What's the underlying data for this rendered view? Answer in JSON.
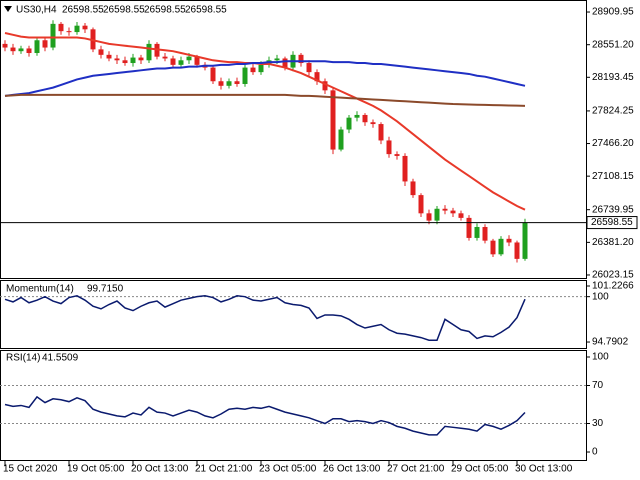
{
  "chart_data": [
    {
      "type": "candlestick",
      "title": "US30,H4",
      "header_values": [
        26598.55,
        26598.55,
        26598.55,
        26598.55
      ],
      "current_price": 26598.55,
      "categories": [
        "15 Oct 2020",
        null,
        null,
        null,
        null,
        null,
        null,
        null,
        "19 Oct 05:00",
        null,
        null,
        null,
        null,
        null,
        null,
        null,
        "20 Oct 13:00",
        null,
        null,
        null,
        null,
        null,
        null,
        null,
        "21 Oct 21:00",
        null,
        null,
        null,
        null,
        null,
        null,
        null,
        "23 Oct 05:00",
        null,
        null,
        null,
        null,
        null,
        null,
        null,
        "26 Oct 13:00",
        null,
        null,
        null,
        null,
        null,
        null,
        null,
        "27 Oct 21:00",
        null,
        null,
        null,
        null,
        null,
        null,
        null,
        "29 Oct 05:00",
        null,
        null,
        null,
        null,
        null,
        null,
        null,
        "30 Oct 13:00",
        null
      ],
      "open": [
        28560,
        28520,
        28480,
        28510,
        28460,
        28600,
        28520,
        28780,
        28700,
        28690,
        28760,
        28720,
        28500,
        28440,
        28400,
        28380,
        28350,
        28410,
        28380,
        28560,
        28420,
        28400,
        28330,
        28380,
        28420,
        28330,
        28300,
        28150,
        28100,
        28150,
        28120,
        28300,
        28250,
        28330,
        28380,
        28400,
        28300,
        28440,
        28350,
        28250,
        28150,
        28050,
        27400,
        27620,
        27750,
        27780,
        27700,
        27680,
        27500,
        27350,
        27330,
        27050,
        26900,
        26700,
        26620,
        26750,
        26730,
        26700,
        26650,
        26430,
        26550,
        26400,
        26250,
        26420,
        26380,
        26200
      ],
      "high": [
        28600,
        28560,
        28540,
        28540,
        28640,
        28640,
        28820,
        28800,
        28740,
        28800,
        28790,
        28740,
        28540,
        28480,
        28440,
        28420,
        28450,
        28440,
        28600,
        28580,
        28460,
        28430,
        28420,
        28460,
        28440,
        28360,
        28320,
        28190,
        28180,
        28190,
        28340,
        28340,
        28370,
        28420,
        28440,
        28420,
        28480,
        28460,
        28380,
        28280,
        28180,
        28080,
        27650,
        27780,
        27820,
        27800,
        27730,
        27700,
        27540,
        27380,
        27360,
        27080,
        26920,
        26740,
        26780,
        26790,
        26760,
        26730,
        26680,
        26590,
        26580,
        26420,
        26450,
        26460,
        26400,
        26640
      ],
      "low": [
        28480,
        28440,
        28450,
        28420,
        28430,
        28480,
        28490,
        28660,
        28650,
        28660,
        28680,
        28470,
        28400,
        28370,
        28340,
        28320,
        28310,
        28340,
        28350,
        28390,
        28370,
        28300,
        28300,
        28340,
        28300,
        28270,
        28120,
        28060,
        28070,
        28090,
        28090,
        28220,
        28220,
        28300,
        28340,
        28270,
        28260,
        28310,
        28210,
        28110,
        28010,
        27350,
        27380,
        27580,
        27710,
        27660,
        27640,
        27460,
        27310,
        27290,
        27000,
        26870,
        26660,
        26580,
        26580,
        26690,
        26660,
        26620,
        26400,
        26400,
        26370,
        26220,
        26230,
        26340,
        26160,
        26180
      ],
      "close": [
        28520,
        28480,
        28510,
        28460,
        28600,
        28520,
        28780,
        28700,
        28690,
        28760,
        28720,
        28500,
        28440,
        28400,
        28380,
        28350,
        28410,
        28380,
        28560,
        28420,
        28400,
        28330,
        28380,
        28420,
        28330,
        28300,
        28150,
        28100,
        28150,
        28120,
        28300,
        28250,
        28330,
        28380,
        28400,
        28300,
        28440,
        28350,
        28250,
        28150,
        28050,
        27400,
        27620,
        27750,
        27780,
        27700,
        27680,
        27500,
        27350,
        27330,
        27050,
        26900,
        26700,
        26620,
        26750,
        26730,
        26700,
        26650,
        26430,
        26550,
        26400,
        26250,
        26420,
        26380,
        26200,
        26598.55
      ],
      "up_color": "#1fa01f",
      "down_color": "#e02020",
      "series": [
        {
          "color": "#e8392a",
          "values": [
            28680,
            28660,
            28640,
            28630,
            28630,
            28630,
            28630,
            28630,
            28630,
            28630,
            28620,
            28600,
            28580,
            28560,
            28550,
            28540,
            28530,
            28520,
            28510,
            28500,
            28490,
            28480,
            28460,
            28440,
            28420,
            28400,
            28380,
            28370,
            28360,
            28360,
            28350,
            28350,
            28340,
            28340,
            28320,
            28300,
            28270,
            28240,
            28200,
            28160,
            28120,
            28080,
            28040,
            28000,
            27960,
            27920,
            27880,
            27830,
            27770,
            27710,
            27640,
            27570,
            27500,
            27430,
            27360,
            27290,
            27230,
            27170,
            27110,
            27050,
            26990,
            26930,
            26880,
            26830,
            26780,
            26740
          ]
        },
        {
          "color": "#1f2fc4",
          "values": [
            27990,
            28000,
            28010,
            28020,
            28040,
            28060,
            28080,
            28110,
            28140,
            28170,
            28190,
            28210,
            28220,
            28230,
            28240,
            28250,
            28260,
            28270,
            28280,
            28290,
            28290,
            28300,
            28300,
            28310,
            28310,
            28320,
            28320,
            28330,
            28330,
            28340,
            28340,
            28350,
            28350,
            28360,
            28360,
            28370,
            28370,
            28370,
            28370,
            28370,
            28370,
            28360,
            28360,
            28360,
            28350,
            28350,
            28340,
            28340,
            28330,
            28320,
            28310,
            28300,
            28290,
            28280,
            28270,
            28260,
            28250,
            28240,
            28230,
            28210,
            28200,
            28180,
            28160,
            28140,
            28120,
            28100
          ]
        },
        {
          "color": "#8b4a2b",
          "values": [
            27990,
            27995,
            28000,
            28000,
            28000,
            28000,
            28000,
            28000,
            28000,
            28000,
            28000,
            28000,
            28000,
            28000,
            28000,
            28000,
            28000,
            28000,
            28000,
            28000,
            28000,
            28000,
            28000,
            28000,
            28000,
            28000,
            28000,
            28000,
            28000,
            28000,
            28000,
            28000,
            28000,
            28000,
            28000,
            28000,
            27995,
            27990,
            27990,
            27985,
            27980,
            27975,
            27970,
            27965,
            27960,
            27955,
            27950,
            27945,
            27940,
            27935,
            27930,
            27925,
            27920,
            27915,
            27910,
            27905,
            27900,
            27897,
            27895,
            27892,
            27890,
            27888,
            27886,
            27884,
            27882,
            27880
          ]
        }
      ],
      "ylim": [
        25990,
        29020
      ],
      "yticks": [
        26023.15,
        {
          "value": 26381.2,
          "label": "26381.20"
        },
        26739.95,
        27108.15,
        {
          "value": 27466.2,
          "label": "27466.20"
        },
        27824.25,
        28193.45,
        {
          "value": 28551.2,
          "label": "28551.20"
        },
        28909.95
      ]
    },
    {
      "type": "line",
      "title": "Momentum(14)",
      "last_value_label": "99.7150",
      "series": [
        {
          "color": "#0a1a6e",
          "values": [
            99.7,
            99.4,
            99.9,
            99.3,
            99.6,
            100.0,
            99.5,
            99.2,
            99.9,
            100.1,
            99.6,
            98.9,
            98.6,
            99.1,
            99.5,
            98.7,
            98.4,
            98.9,
            99.3,
            99.5,
            98.8,
            99.2,
            99.6,
            99.8,
            100.0,
            100.1,
            99.9,
            99.4,
            99.7,
            100.1,
            100.0,
            99.6,
            99.5,
            99.7,
            99.9,
            99.3,
            99.1,
            99.0,
            98.7,
            97.5,
            97.9,
            97.9,
            97.8,
            97.4,
            96.8,
            96.4,
            96.6,
            96.8,
            96.2,
            95.8,
            95.7,
            95.5,
            95.3,
            95.0,
            95.0,
            97.4,
            96.8,
            96.2,
            96.0,
            95.2,
            95.5,
            95.4,
            95.9,
            96.5,
            97.6,
            99.715
          ]
        }
      ],
      "ylim": [
        93.99,
        101.8
      ],
      "yticks": [
        94.7902,
        100,
        101.2266
      ],
      "levels": [
        100
      ]
    },
    {
      "type": "line",
      "title": "RSI(14)",
      "series": [
        {
          "color": "#0a1a6e",
          "values": [
            50,
            48,
            49,
            47,
            58,
            52,
            56,
            55,
            53,
            57,
            54,
            45,
            42,
            40,
            38,
            37,
            41,
            39,
            47,
            42,
            41,
            38,
            41,
            44,
            42,
            38,
            36,
            40,
            45,
            46,
            45,
            47,
            46,
            48,
            45,
            42,
            40,
            38,
            36,
            33,
            30,
            35,
            35,
            32,
            33,
            32,
            30,
            33,
            31,
            27,
            25,
            22,
            20,
            18,
            18,
            27,
            26,
            25,
            24,
            22,
            29,
            27,
            24,
            28,
            33,
            41.5509
          ]
        }
      ],
      "ylim": [
        -8.4,
        106.3
      ],
      "yticks": [
        0,
        30,
        70,
        100
      ],
      "levels": [
        30,
        70
      ]
    }
  ]
}
